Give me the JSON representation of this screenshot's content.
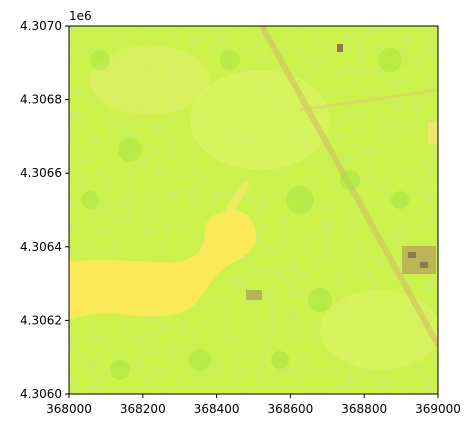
{
  "figure": {
    "offset_text": "1e6",
    "axes_frame_color": "#000000",
    "background": "#ffffff"
  },
  "chart_data": {
    "type": "heatmap",
    "title": "",
    "xlabel": "",
    "ylabel": "",
    "xlim": [
      368000,
      369000
    ],
    "ylim": [
      4.306,
      4.307
    ],
    "y_offset_multiplier": "1e6",
    "x_ticks": [
      368000,
      368200,
      368400,
      368600,
      368800,
      369000
    ],
    "x_tick_labels": [
      "368000",
      "368200",
      "368400",
      "368600",
      "368800",
      "369000"
    ],
    "y_ticks": [
      4.306,
      4.3062,
      4.3064,
      4.3066,
      4.3068,
      4.307
    ],
    "y_tick_labels": [
      "4.3060",
      "4.3062",
      "4.3064",
      "4.3066",
      "4.3068",
      "4.3070"
    ],
    "grid": false,
    "legend": "none",
    "colors": {
      "vegetation_dominant": "#cdf24a",
      "vegetation_light": "#e2f56a",
      "vegetation_shadow": "#9fe33e",
      "water_body": "#fbe95a",
      "road": "#d2c463",
      "building": "#8c7a4e"
    }
  }
}
